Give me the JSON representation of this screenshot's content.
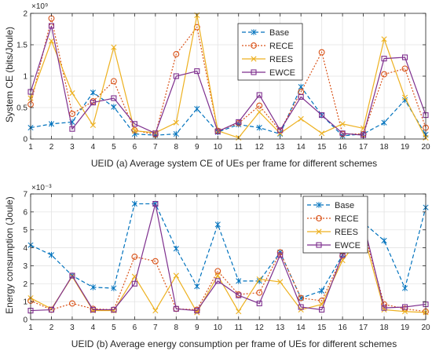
{
  "chart_data": [
    {
      "type": "line",
      "title": "",
      "xlabel": "UEID (a) Average system CE of UEs per frame for different schemes",
      "ylabel": "System CE (bits/Joule)",
      "exponent_label": "×10⁹",
      "x": [
        1,
        2,
        3,
        4,
        5,
        6,
        7,
        8,
        9,
        10,
        11,
        12,
        13,
        14,
        15,
        16,
        17,
        18,
        19,
        20
      ],
      "xlim": [
        1,
        20
      ],
      "ylim": [
        0,
        2
      ],
      "yticks": [
        {
          "value": 0,
          "label": "0"
        },
        {
          "value": 0.5,
          "label": "0.5"
        },
        {
          "value": 1,
          "label": "1"
        },
        {
          "value": 1.5,
          "label": "1.5"
        },
        {
          "value": 2,
          "label": "2"
        }
      ],
      "grid": true,
      "legend_position": "top-center",
      "series": [
        {
          "name": "Base",
          "color": "#0072BD",
          "dash": "5,3",
          "marker": "asterisk",
          "values": [
            0.18,
            0.24,
            0.27,
            0.74,
            0.51,
            0.08,
            0.06,
            0.08,
            0.48,
            0.11,
            0.23,
            0.18,
            0.08,
            0.83,
            0.38,
            0.05,
            0.08,
            0.26,
            0.62,
            0.07
          ]
        },
        {
          "name": "RECE",
          "color": "#D95319",
          "dash": "2,2",
          "marker": "circle",
          "values": [
            0.55,
            1.92,
            0.4,
            0.6,
            0.92,
            0.14,
            0.07,
            1.35,
            1.78,
            0.13,
            0.25,
            0.53,
            0.13,
            0.75,
            1.38,
            0.08,
            0.08,
            1.03,
            1.12,
            0.18
          ]
        },
        {
          "name": "REES",
          "color": "#EDB120",
          "dash": "",
          "marker": "x",
          "values": [
            0.65,
            1.56,
            0.73,
            0.22,
            1.46,
            0.13,
            0.1,
            0.26,
            1.97,
            0.13,
            0.02,
            0.43,
            0.09,
            0.32,
            0.09,
            0.24,
            0.17,
            1.59,
            0.66,
            0.02
          ]
        },
        {
          "name": "EWCE",
          "color": "#7E2F8E",
          "dash": "",
          "marker": "square",
          "values": [
            0.75,
            1.8,
            0.16,
            0.58,
            0.65,
            0.24,
            0.09,
            1.0,
            1.08,
            0.12,
            0.27,
            0.7,
            0.14,
            0.67,
            0.38,
            0.09,
            0.06,
            1.28,
            1.3,
            0.38
          ]
        }
      ]
    },
    {
      "type": "line",
      "title": "",
      "xlabel": "UEID (b) Average energy consumption per frame of UEs for different schemes",
      "ylabel": "Energy consumption (Joule)",
      "exponent_label": "×10⁻³",
      "x": [
        1,
        2,
        3,
        4,
        5,
        6,
        7,
        8,
        9,
        10,
        11,
        12,
        13,
        14,
        15,
        16,
        17,
        18,
        19,
        20
      ],
      "xlim": [
        1,
        20
      ],
      "ylim": [
        0,
        7
      ],
      "yticks": [
        {
          "value": 0,
          "label": "0"
        },
        {
          "value": 1,
          "label": "1"
        },
        {
          "value": 2,
          "label": "2"
        },
        {
          "value": 3,
          "label": "3"
        },
        {
          "value": 4,
          "label": "4"
        },
        {
          "value": 5,
          "label": "5"
        },
        {
          "value": 6,
          "label": "6"
        },
        {
          "value": 7,
          "label": "7"
        }
      ],
      "grid": true,
      "legend_position": "top-right",
      "series": [
        {
          "name": "Base",
          "color": "#0072BD",
          "dash": "5,3",
          "marker": "asterisk",
          "values": [
            4.15,
            3.6,
            2.45,
            1.8,
            1.75,
            6.45,
            6.45,
            3.95,
            1.85,
            5.3,
            2.15,
            2.15,
            3.75,
            1.2,
            1.6,
            3.6,
            5.4,
            4.4,
            1.75,
            6.25
          ]
        },
        {
          "name": "RECE",
          "color": "#D95319",
          "dash": "2,2",
          "marker": "circle",
          "values": [
            1.05,
            0.55,
            0.9,
            0.6,
            0.55,
            3.5,
            3.25,
            0.6,
            0.55,
            2.7,
            1.4,
            1.5,
            3.75,
            1.2,
            1.05,
            3.55,
            5.05,
            0.85,
            0.6,
            0.45
          ]
        },
        {
          "name": "REES",
          "color": "#EDB120",
          "dash": "",
          "marker": "x",
          "values": [
            1.2,
            0.6,
            2.4,
            0.5,
            0.5,
            2.4,
            0.5,
            2.45,
            0.4,
            2.45,
            0.45,
            2.25,
            2.1,
            0.55,
            0.85,
            3.3,
            4.8,
            0.55,
            0.45,
            0.4
          ]
        },
        {
          "name": "EWCE",
          "color": "#7E2F8E",
          "dash": "",
          "marker": "square",
          "values": [
            0.5,
            0.55,
            2.45,
            0.55,
            0.55,
            2.0,
            6.45,
            0.6,
            0.5,
            2.15,
            1.35,
            0.9,
            3.6,
            0.7,
            0.55,
            3.6,
            5.4,
            0.65,
            0.7,
            0.85
          ]
        }
      ]
    }
  ]
}
